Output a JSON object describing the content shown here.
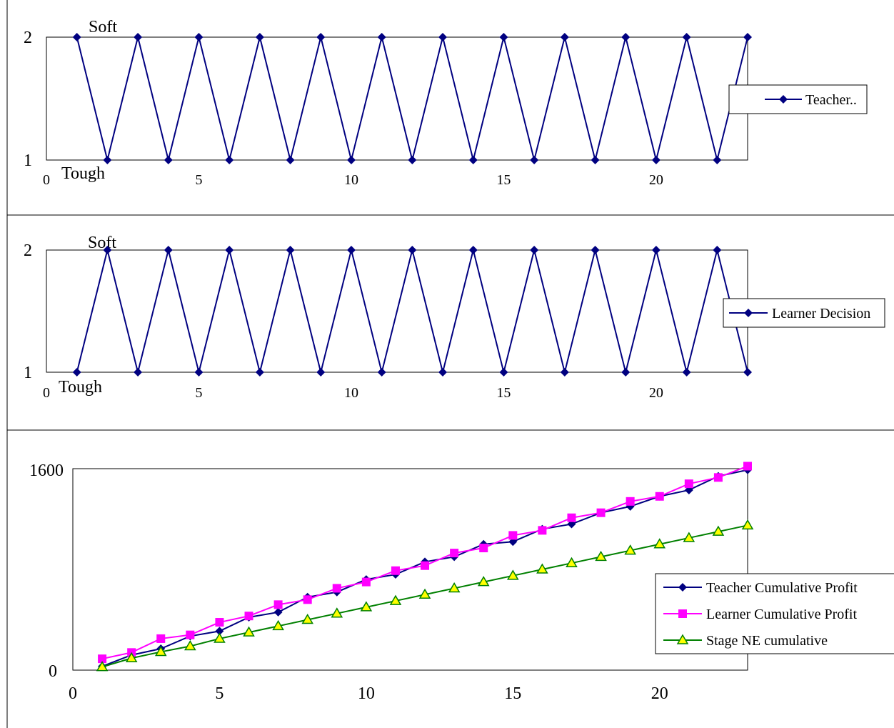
{
  "colors": {
    "navy": "#000080",
    "magenta": "#FF00FF",
    "green": "#008000",
    "yellow": "#FFFF00"
  },
  "chart_data": [
    {
      "type": "line",
      "x": [
        1,
        2,
        3,
        4,
        5,
        6,
        7,
        8,
        9,
        10,
        11,
        12,
        13,
        14,
        15,
        16,
        17,
        18,
        19,
        20,
        21,
        22,
        23
      ],
      "series": [
        {
          "name": "Teacher..",
          "values": [
            2,
            1,
            2,
            1,
            2,
            1,
            2,
            1,
            2,
            1,
            2,
            1,
            2,
            1,
            2,
            1,
            2,
            1,
            2,
            1,
            2,
            1,
            2
          ],
          "color": "#000080",
          "marker": "diamond"
        }
      ],
      "xlim": [
        0,
        23
      ],
      "ylim": [
        1,
        2
      ],
      "xticks": [
        "0",
        "5",
        "10",
        "15",
        "20"
      ],
      "yticks": [
        "1",
        "2"
      ],
      "annotations": {
        "top": "Soft",
        "bottom": "Tough"
      },
      "legend": "right",
      "grid": false
    },
    {
      "type": "line",
      "x": [
        1,
        2,
        3,
        4,
        5,
        6,
        7,
        8,
        9,
        10,
        11,
        12,
        13,
        14,
        15,
        16,
        17,
        18,
        19,
        20,
        21,
        22,
        23
      ],
      "series": [
        {
          "name": "Learner Decision",
          "values": [
            1,
            2,
            1,
            2,
            1,
            2,
            1,
            2,
            1,
            2,
            1,
            2,
            1,
            2,
            1,
            2,
            1,
            2,
            1,
            2,
            1,
            2,
            1
          ],
          "color": "#000080",
          "marker": "diamond"
        }
      ],
      "xlim": [
        0,
        23
      ],
      "ylim": [
        1,
        2
      ],
      "xticks": [
        "0",
        "5",
        "10",
        "15",
        "20"
      ],
      "yticks": [
        "1",
        "2"
      ],
      "annotations": {
        "top": "Soft",
        "bottom": "Tough"
      },
      "legend": "right",
      "grid": false
    },
    {
      "type": "line",
      "x": [
        1,
        2,
        3,
        4,
        5,
        6,
        7,
        8,
        9,
        10,
        11,
        12,
        13,
        14,
        15,
        16,
        17,
        18,
        19,
        20,
        21,
        22,
        23
      ],
      "series": [
        {
          "name": "Teacher Cumulative Profit",
          "color": "#000080",
          "marker": "diamond",
          "values": [
            30,
            120,
            170,
            270,
            310,
            420,
            460,
            580,
            620,
            720,
            760,
            860,
            900,
            1000,
            1020,
            1120,
            1160,
            1250,
            1300,
            1380,
            1430,
            1540,
            1590
          ]
        },
        {
          "name": "Learner Cumulative Profit",
          "color": "#FF00FF",
          "marker": "square",
          "values": [
            90,
            140,
            250,
            280,
            380,
            430,
            520,
            560,
            650,
            700,
            790,
            830,
            930,
            970,
            1070,
            1110,
            1210,
            1250,
            1340,
            1380,
            1480,
            1530,
            1620
          ]
        },
        {
          "name": "Stage NE cumulative",
          "color": "#008000",
          "marker": "triangle",
          "values": [
            25,
            95,
            145,
            190,
            250,
            300,
            350,
            400,
            450,
            500,
            550,
            600,
            650,
            700,
            750,
            800,
            850,
            900,
            950,
            1000,
            1050,
            1100,
            1150
          ]
        }
      ],
      "xlim": [
        0,
        23
      ],
      "ylim": [
        0,
        1600
      ],
      "xticks": [
        "0",
        "5",
        "10",
        "15",
        "20"
      ],
      "yticks": [
        "0",
        "1600"
      ],
      "legend": "lower-right",
      "grid": false
    }
  ]
}
